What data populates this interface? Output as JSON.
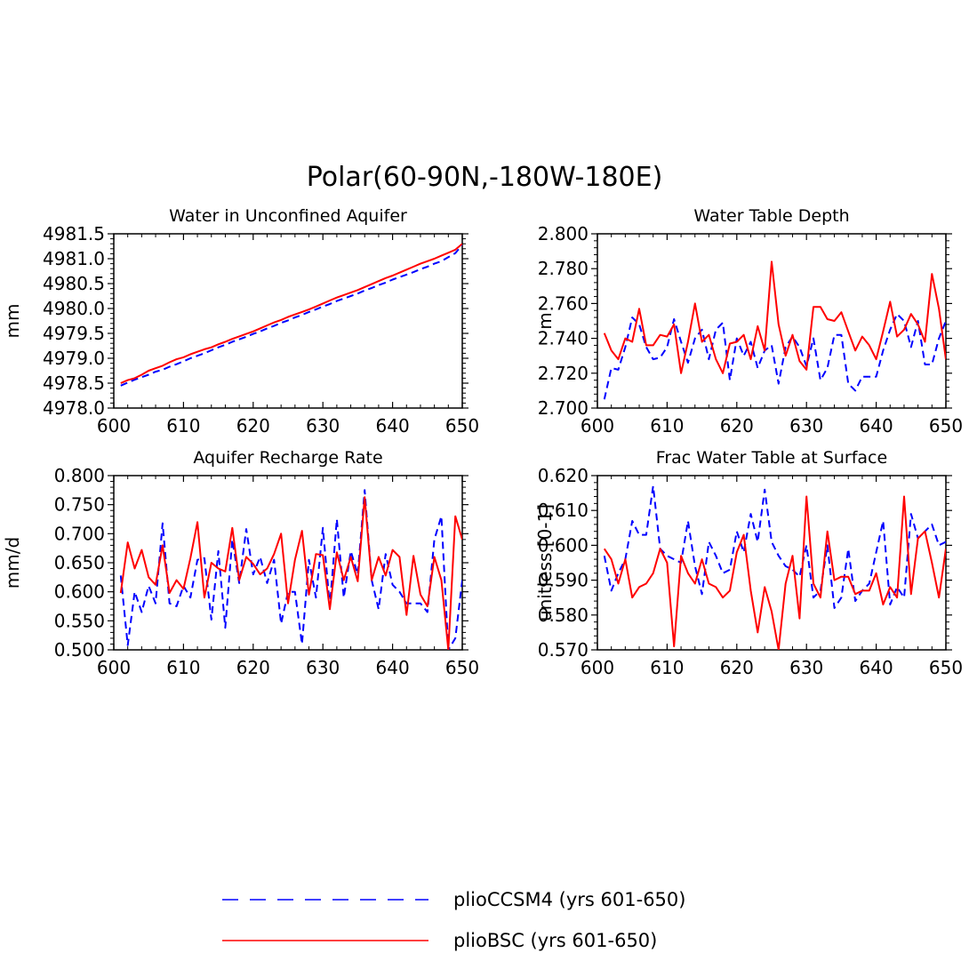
{
  "figure_title": "Polar(60-90N,-180W-180E)",
  "legend": [
    {
      "label": "plioCCSM4 (yrs 601-650)",
      "color": "#0000ff",
      "style": "dashed"
    },
    {
      "label": "plioBSC (yrs 601-650)",
      "color": "#ff0000",
      "style": "solid"
    }
  ],
  "chart_data": [
    {
      "type": "line",
      "title": "Water in Unconfined Aquifer",
      "xlabel": "",
      "ylabel": "mm",
      "xlim": [
        600,
        650
      ],
      "ylim": [
        4978.0,
        4981.5
      ],
      "xticks": [
        "600",
        "610",
        "620",
        "630",
        "640",
        "650"
      ],
      "yticks": [
        "4978.0",
        "4978.5",
        "4979.0",
        "4979.5",
        "4980.0",
        "4980.5",
        "4981.0",
        "4981.5"
      ],
      "x": [
        601,
        602,
        603,
        604,
        605,
        606,
        607,
        608,
        609,
        610,
        611,
        612,
        613,
        614,
        615,
        616,
        617,
        618,
        619,
        620,
        621,
        622,
        623,
        624,
        625,
        626,
        627,
        628,
        629,
        630,
        631,
        632,
        633,
        634,
        635,
        636,
        637,
        638,
        639,
        640,
        641,
        642,
        643,
        644,
        645,
        646,
        647,
        648,
        649,
        650
      ],
      "series": [
        {
          "name": "plioCCSM4 (yrs 601-650)",
          "values": [
            4978.45,
            4978.51,
            4978.57,
            4978.62,
            4978.67,
            4978.73,
            4978.77,
            4978.83,
            4978.88,
            4978.94,
            4979.0,
            4979.05,
            4979.1,
            4979.16,
            4979.22,
            4979.27,
            4979.33,
            4979.38,
            4979.43,
            4979.49,
            4979.54,
            4979.6,
            4979.65,
            4979.71,
            4979.76,
            4979.82,
            4979.87,
            4979.93,
            4979.98,
            4980.04,
            4980.09,
            4980.15,
            4980.2,
            4980.25,
            4980.3,
            4980.36,
            4980.41,
            4980.47,
            4980.52,
            4980.58,
            4980.63,
            4980.68,
            4980.73,
            4980.79,
            4980.84,
            4980.9,
            4980.95,
            4981.03,
            4981.11,
            4981.28
          ]
        },
        {
          "name": "plioBSC (yrs 601-650)",
          "values": [
            4978.5,
            4978.56,
            4978.6,
            4978.67,
            4978.75,
            4978.8,
            4978.85,
            4978.92,
            4978.98,
            4979.02,
            4979.08,
            4979.13,
            4979.18,
            4979.22,
            4979.28,
            4979.33,
            4979.39,
            4979.44,
            4979.49,
            4979.54,
            4979.6,
            4979.66,
            4979.72,
            4979.77,
            4979.83,
            4979.88,
            4979.93,
            4979.98,
            4980.04,
            4980.1,
            4980.16,
            4980.22,
            4980.27,
            4980.32,
            4980.37,
            4980.43,
            4980.49,
            4980.55,
            4980.61,
            4980.66,
            4980.72,
            4980.78,
            4980.84,
            4980.9,
            4980.95,
            4981.0,
            4981.06,
            4981.12,
            4981.18,
            4981.3
          ]
        }
      ]
    },
    {
      "type": "line",
      "title": "Water Table Depth",
      "xlabel": "",
      "ylabel": "m",
      "xlim": [
        600,
        650
      ],
      "ylim": [
        2.7,
        2.8
      ],
      "xticks": [
        "600",
        "610",
        "620",
        "630",
        "640",
        "650"
      ],
      "yticks": [
        "2.700",
        "2.720",
        "2.740",
        "2.760",
        "2.780",
        "2.800"
      ],
      "x": [
        601,
        602,
        603,
        604,
        605,
        606,
        607,
        608,
        609,
        610,
        611,
        612,
        613,
        614,
        615,
        616,
        617,
        618,
        619,
        620,
        621,
        622,
        623,
        624,
        625,
        626,
        627,
        628,
        629,
        630,
        631,
        632,
        633,
        634,
        635,
        636,
        637,
        638,
        639,
        640,
        641,
        642,
        643,
        644,
        645,
        646,
        647,
        648,
        649,
        650
      ],
      "series": [
        {
          "name": "plioCCSM4 (yrs 601-650)",
          "values": [
            2.705,
            2.723,
            2.722,
            2.735,
            2.752,
            2.748,
            2.735,
            2.728,
            2.729,
            2.735,
            2.751,
            2.738,
            2.726,
            2.74,
            2.745,
            2.728,
            2.745,
            2.749,
            2.716,
            2.74,
            2.73,
            2.738,
            2.723,
            2.733,
            2.736,
            2.714,
            2.735,
            2.741,
            2.735,
            2.724,
            2.74,
            2.716,
            2.723,
            2.742,
            2.742,
            2.714,
            2.71,
            2.718,
            2.718,
            2.718,
            2.733,
            2.745,
            2.754,
            2.75,
            2.735,
            2.75,
            2.725,
            2.725,
            2.74,
            2.75
          ]
        },
        {
          "name": "plioBSC (yrs 601-650)",
          "values": [
            2.743,
            2.733,
            2.728,
            2.74,
            2.738,
            2.757,
            2.736,
            2.736,
            2.742,
            2.741,
            2.748,
            2.72,
            2.738,
            2.76,
            2.738,
            2.742,
            2.728,
            2.72,
            2.737,
            2.738,
            2.742,
            2.728,
            2.747,
            2.733,
            2.784,
            2.748,
            2.73,
            2.742,
            2.727,
            2.722,
            2.758,
            2.758,
            2.751,
            2.75,
            2.755,
            2.744,
            2.733,
            2.741,
            2.736,
            2.728,
            2.744,
            2.761,
            2.741,
            2.745,
            2.754,
            2.748,
            2.738,
            2.777,
            2.757,
            2.728
          ]
        }
      ]
    },
    {
      "type": "line",
      "title": "Aquifer Recharge Rate",
      "xlabel": "",
      "ylabel": "mm/d",
      "xlim": [
        600,
        650
      ],
      "ylim": [
        0.5,
        0.8
      ],
      "xticks": [
        "600",
        "610",
        "620",
        "630",
        "640",
        "650"
      ],
      "yticks": [
        "0.500",
        "0.550",
        "0.600",
        "0.650",
        "0.700",
        "0.750",
        "0.800"
      ],
      "x": [
        601,
        602,
        603,
        604,
        605,
        606,
        607,
        608,
        609,
        610,
        611,
        612,
        613,
        614,
        615,
        616,
        617,
        618,
        619,
        620,
        621,
        622,
        623,
        624,
        625,
        626,
        627,
        628,
        629,
        630,
        631,
        632,
        633,
        634,
        635,
        636,
        637,
        638,
        639,
        640,
        641,
        642,
        643,
        644,
        645,
        646,
        647,
        648,
        649,
        650
      ],
      "series": [
        {
          "name": "plioCCSM4 (yrs 601-650)",
          "values": [
            0.628,
            0.508,
            0.6,
            0.565,
            0.61,
            0.58,
            0.718,
            0.58,
            0.575,
            0.61,
            0.59,
            0.655,
            0.658,
            0.552,
            0.67,
            0.538,
            0.69,
            0.615,
            0.708,
            0.63,
            0.66,
            0.615,
            0.655,
            0.545,
            0.6,
            0.6,
            0.51,
            0.655,
            0.59,
            0.71,
            0.575,
            0.725,
            0.59,
            0.67,
            0.63,
            0.775,
            0.62,
            0.57,
            0.665,
            0.612,
            0.6,
            0.58,
            0.58,
            0.58,
            0.565,
            0.69,
            0.73,
            0.5,
            0.52,
            0.62
          ]
        },
        {
          "name": "plioBSC (yrs 601-650)",
          "values": [
            0.598,
            0.685,
            0.64,
            0.672,
            0.625,
            0.612,
            0.68,
            0.598,
            0.62,
            0.605,
            0.658,
            0.72,
            0.59,
            0.65,
            0.64,
            0.635,
            0.71,
            0.62,
            0.66,
            0.648,
            0.63,
            0.64,
            0.665,
            0.7,
            0.58,
            0.655,
            0.705,
            0.595,
            0.665,
            0.663,
            0.57,
            0.668,
            0.62,
            0.66,
            0.618,
            0.763,
            0.62,
            0.66,
            0.628,
            0.672,
            0.66,
            0.56,
            0.662,
            0.595,
            0.575,
            0.66,
            0.62,
            0.5,
            0.73,
            0.69
          ]
        }
      ]
    },
    {
      "type": "line",
      "title": "Frac Water Table at Surface",
      "xlabel": "",
      "ylabel": "unitless [0-1]",
      "xlim": [
        600,
        650
      ],
      "ylim": [
        0.57,
        0.62
      ],
      "xticks": [
        "600",
        "610",
        "620",
        "630",
        "640",
        "650"
      ],
      "yticks": [
        "0.570",
        "0.580",
        "0.590",
        "0.600",
        "0.610",
        "0.620"
      ],
      "x": [
        601,
        602,
        603,
        604,
        605,
        606,
        607,
        608,
        609,
        610,
        611,
        612,
        613,
        614,
        615,
        616,
        617,
        618,
        619,
        620,
        621,
        622,
        623,
        624,
        625,
        626,
        627,
        628,
        629,
        630,
        631,
        632,
        633,
        634,
        635,
        636,
        637,
        638,
        639,
        640,
        641,
        642,
        643,
        644,
        645,
        646,
        647,
        648,
        649,
        650
      ],
      "series": [
        {
          "name": "plioCCSM4 (yrs 601-650)",
          "values": [
            0.597,
            0.587,
            0.592,
            0.596,
            0.607,
            0.603,
            0.603,
            0.617,
            0.599,
            0.597,
            0.596,
            0.595,
            0.607,
            0.594,
            0.586,
            0.601,
            0.597,
            0.592,
            0.593,
            0.604,
            0.598,
            0.609,
            0.601,
            0.616,
            0.601,
            0.597,
            0.594,
            0.593,
            0.591,
            0.6,
            0.585,
            0.587,
            0.6,
            0.582,
            0.585,
            0.599,
            0.584,
            0.587,
            0.589,
            0.598,
            0.607,
            0.583,
            0.588,
            0.585,
            0.609,
            0.602,
            0.604,
            0.606,
            0.6,
            0.601
          ]
        },
        {
          "name": "plioBSC (yrs 601-650)",
          "values": [
            0.599,
            0.596,
            0.589,
            0.596,
            0.585,
            0.588,
            0.589,
            0.592,
            0.599,
            0.595,
            0.571,
            0.597,
            0.592,
            0.589,
            0.596,
            0.589,
            0.588,
            0.585,
            0.587,
            0.598,
            0.603,
            0.587,
            0.575,
            0.588,
            0.581,
            0.57,
            0.589,
            0.597,
            0.579,
            0.614,
            0.589,
            0.585,
            0.604,
            0.59,
            0.591,
            0.591,
            0.586,
            0.587,
            0.587,
            0.592,
            0.583,
            0.588,
            0.585,
            0.614,
            0.586,
            0.602,
            0.604,
            0.595,
            0.585,
            0.599
          ]
        }
      ]
    }
  ]
}
